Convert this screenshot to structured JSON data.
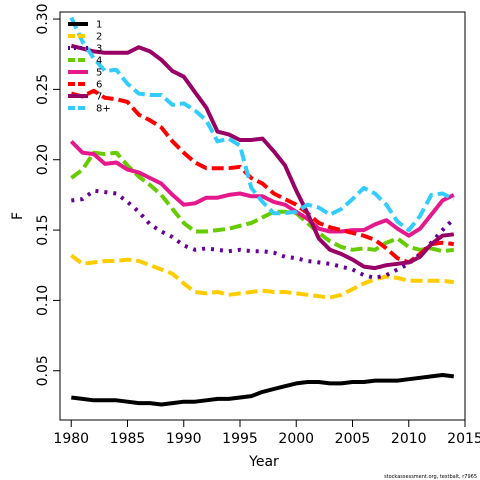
{
  "chart_data": {
    "type": "line",
    "xlabel": "Year",
    "ylabel": "F",
    "xlim": [
      1979,
      2015
    ],
    "ylim": [
      0.015,
      0.305
    ],
    "xticks": [
      1980,
      1985,
      1990,
      1995,
      2000,
      2005,
      2010,
      2015
    ],
    "yticks": [
      0.05,
      0.1,
      0.15,
      0.2,
      0.25,
      0.3
    ],
    "ytick_labels": [
      "0.05",
      "0.10",
      "0.15",
      "0.20",
      "0.25",
      "0.30"
    ],
    "legend_position": "top-left",
    "x": [
      1980,
      1981,
      1982,
      1983,
      1984,
      1985,
      1986,
      1987,
      1988,
      1989,
      1990,
      1991,
      1992,
      1993,
      1994,
      1995,
      1996,
      1997,
      1998,
      1999,
      2000,
      2001,
      2002,
      2003,
      2004,
      2005,
      2006,
      2007,
      2008,
      2009,
      2010,
      2011,
      2012,
      2013,
      2014
    ],
    "series": [
      {
        "name": "1",
        "color": "#000000",
        "dash": "solid",
        "values": [
          0.031,
          0.03,
          0.029,
          0.029,
          0.029,
          0.028,
          0.027,
          0.027,
          0.026,
          0.027,
          0.028,
          0.028,
          0.029,
          0.03,
          0.03,
          0.031,
          0.032,
          0.035,
          0.037,
          0.039,
          0.041,
          0.042,
          0.042,
          0.041,
          0.041,
          0.042,
          0.042,
          0.043,
          0.043,
          0.043,
          0.044,
          0.045,
          0.046,
          0.047,
          0.046
        ]
      },
      {
        "name": "2",
        "color": "#ffcc00",
        "dash": "dashed",
        "values": [
          0.132,
          0.126,
          0.127,
          0.128,
          0.128,
          0.129,
          0.128,
          0.125,
          0.122,
          0.119,
          0.112,
          0.106,
          0.105,
          0.106,
          0.104,
          0.105,
          0.106,
          0.107,
          0.106,
          0.106,
          0.105,
          0.104,
          0.103,
          0.102,
          0.104,
          0.108,
          0.112,
          0.115,
          0.117,
          0.116,
          0.114,
          0.114,
          0.114,
          0.114,
          0.113
        ]
      },
      {
        "name": "3",
        "color": "#660099",
        "dash": "dotted",
        "values": [
          0.171,
          0.172,
          0.178,
          0.177,
          0.176,
          0.17,
          0.163,
          0.154,
          0.149,
          0.145,
          0.139,
          0.136,
          0.137,
          0.136,
          0.135,
          0.136,
          0.135,
          0.135,
          0.134,
          0.131,
          0.13,
          0.128,
          0.127,
          0.126,
          0.124,
          0.122,
          0.118,
          0.116,
          0.118,
          0.122,
          0.126,
          0.133,
          0.141,
          0.15,
          0.158
        ]
      },
      {
        "name": "4",
        "color": "#66cc00",
        "dash": "dashed",
        "values": [
          0.187,
          0.193,
          0.205,
          0.204,
          0.205,
          0.196,
          0.188,
          0.182,
          0.175,
          0.165,
          0.155,
          0.149,
          0.149,
          0.15,
          0.151,
          0.153,
          0.155,
          0.159,
          0.163,
          0.163,
          0.162,
          0.155,
          0.148,
          0.142,
          0.138,
          0.136,
          0.137,
          0.136,
          0.141,
          0.144,
          0.138,
          0.136,
          0.137,
          0.135,
          0.136
        ]
      },
      {
        "name": "5",
        "color": "#e6198c",
        "dash": "solid",
        "values": [
          0.213,
          0.205,
          0.204,
          0.197,
          0.198,
          0.193,
          0.191,
          0.187,
          0.183,
          0.175,
          0.168,
          0.169,
          0.173,
          0.173,
          0.175,
          0.176,
          0.174,
          0.174,
          0.17,
          0.168,
          0.163,
          0.158,
          0.151,
          0.149,
          0.149,
          0.15,
          0.15,
          0.154,
          0.157,
          0.151,
          0.146,
          0.151,
          0.161,
          0.171,
          0.175
        ]
      },
      {
        "name": "6",
        "color": "#ff0000",
        "dash": "dashed",
        "values": [
          0.247,
          0.245,
          0.249,
          0.244,
          0.243,
          0.241,
          0.232,
          0.228,
          0.223,
          0.213,
          0.205,
          0.198,
          0.194,
          0.194,
          0.194,
          0.195,
          0.187,
          0.183,
          0.176,
          0.172,
          0.168,
          0.162,
          0.155,
          0.152,
          0.15,
          0.148,
          0.146,
          0.143,
          0.137,
          0.13,
          0.127,
          0.133,
          0.14,
          0.141,
          0.14
        ]
      },
      {
        "name": "7",
        "color": "#990066",
        "dash": "solid",
        "values": [
          0.281,
          0.279,
          0.277,
          0.276,
          0.276,
          0.276,
          0.28,
          0.277,
          0.271,
          0.263,
          0.259,
          0.248,
          0.237,
          0.22,
          0.218,
          0.214,
          0.214,
          0.215,
          0.206,
          0.196,
          0.178,
          0.162,
          0.144,
          0.136,
          0.133,
          0.129,
          0.124,
          0.123,
          0.125,
          0.126,
          0.127,
          0.131,
          0.14,
          0.146,
          0.147
        ]
      },
      {
        "name": "8+",
        "color": "#33ccff",
        "dash": "dashed",
        "values": [
          0.301,
          0.284,
          0.272,
          0.263,
          0.264,
          0.254,
          0.247,
          0.246,
          0.246,
          0.239,
          0.24,
          0.235,
          0.228,
          0.213,
          0.215,
          0.21,
          0.18,
          0.17,
          0.162,
          0.162,
          0.163,
          0.168,
          0.166,
          0.161,
          0.165,
          0.172,
          0.18,
          0.176,
          0.168,
          0.156,
          0.15,
          0.16,
          0.175,
          0.176,
          0.172
        ]
      }
    ],
    "footer": "stockassessment.org, testbalt, r7965"
  }
}
